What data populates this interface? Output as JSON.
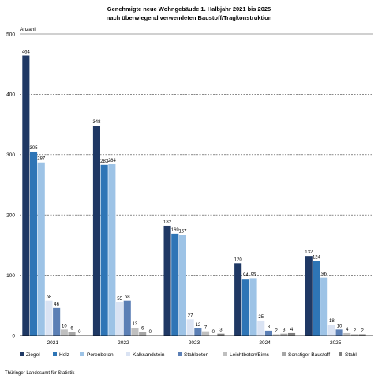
{
  "chart_data": {
    "type": "bar",
    "title": "Genehmigte neue Wohngebäude 1. Halbjahr 2021 bis 2025",
    "subtitle": "nach überwiegend verwendeten Baustoff/Tragkonstruktion",
    "ylabel": "Anzahl",
    "xlabel": "",
    "ylim": [
      0,
      500
    ],
    "yticks": [
      0,
      100,
      200,
      300,
      400,
      500
    ],
    "grid": true,
    "legend_position": "bottom",
    "categories": [
      "2021",
      "2022",
      "2023",
      "2024",
      "2025"
    ],
    "series": [
      {
        "name": "Ziegel",
        "color": "#1f3864",
        "values": [
          464,
          348,
          182,
          120,
          132
        ]
      },
      {
        "name": "Holz",
        "color": "#2e75b6",
        "values": [
          305,
          283,
          169,
          94,
          124
        ]
      },
      {
        "name": "Porenbeton",
        "color": "#9dc3e6",
        "values": [
          287,
          284,
          167,
          95,
          96
        ]
      },
      {
        "name": "Kalksandstein",
        "color": "#dae3f3",
        "values": [
          58,
          55,
          27,
          25,
          18
        ]
      },
      {
        "name": "Stahlbeton",
        "color": "#5b7fb5",
        "values": [
          46,
          58,
          12,
          8,
          10
        ]
      },
      {
        "name": "Leichtbeton/Bims",
        "color": "#bfbfbf",
        "values": [
          10,
          13,
          7,
          2,
          4
        ]
      },
      {
        "name": "Sonstiger Baustoff",
        "color": "#a6a6a6",
        "values": [
          6,
          6,
          0,
          3,
          2
        ]
      },
      {
        "name": "Stahl",
        "color": "#7f7f7f",
        "values": [
          0,
          0,
          3,
          4,
          2
        ]
      }
    ]
  },
  "source": "Thüringer Landesamt für Statistik"
}
